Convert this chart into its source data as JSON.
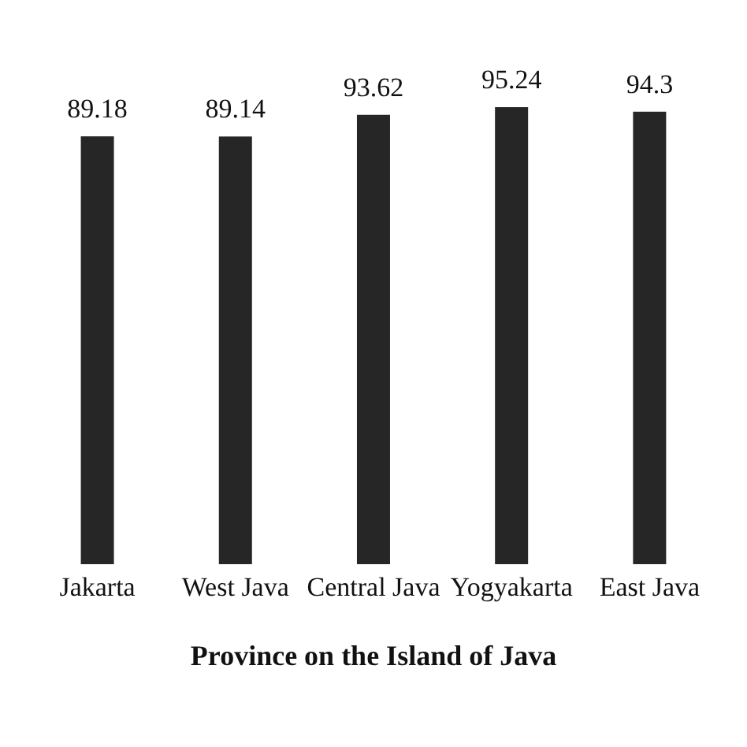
{
  "chart_data": {
    "type": "bar",
    "xlabel": "Province on the Island of Java",
    "categories": [
      "Jakarta",
      "West Java",
      "Central Java",
      "Yogyakarta",
      "East Java"
    ],
    "values": [
      89.18,
      89.14,
      93.62,
      95.24,
      94.3
    ],
    "color": "#262626",
    "data_labels": true,
    "tick_labels": "x"
  }
}
